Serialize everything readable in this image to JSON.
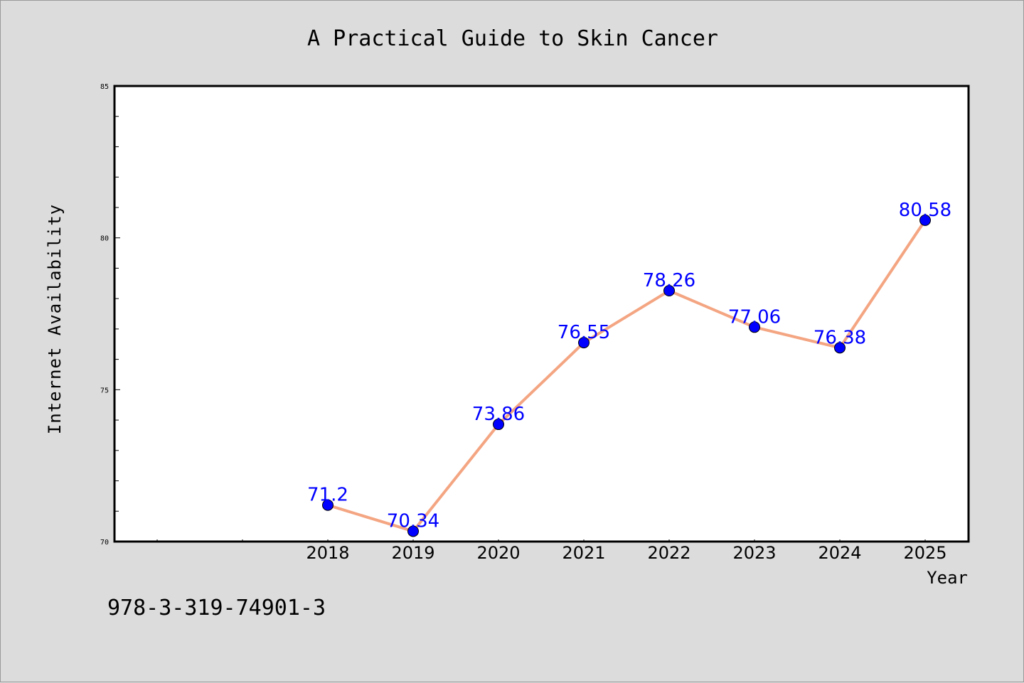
{
  "chart_data": {
    "type": "line",
    "title": "A Practical Guide to Skin Cancer",
    "xlabel": "Year",
    "ylabel": "Internet Availability",
    "categories": [
      "2018",
      "2019",
      "2020",
      "2021",
      "2022",
      "2023",
      "2024",
      "2025"
    ],
    "values": [
      71.2,
      70.34,
      73.86,
      76.55,
      78.26,
      77.06,
      76.38,
      80.58
    ],
    "data_labels": [
      "71.2",
      "70.34",
      "73.86",
      "76.55",
      "78.26",
      "77.06",
      "76.38",
      "80.58"
    ],
    "ylim": [
      70,
      85
    ],
    "yticks": [
      "70",
      "75",
      "80",
      "85"
    ],
    "grid": false,
    "line_color": "#f4a582",
    "marker_color": "#0000ff",
    "label_color": "#0000ff",
    "annotation": "978-3-319-74901-3"
  }
}
